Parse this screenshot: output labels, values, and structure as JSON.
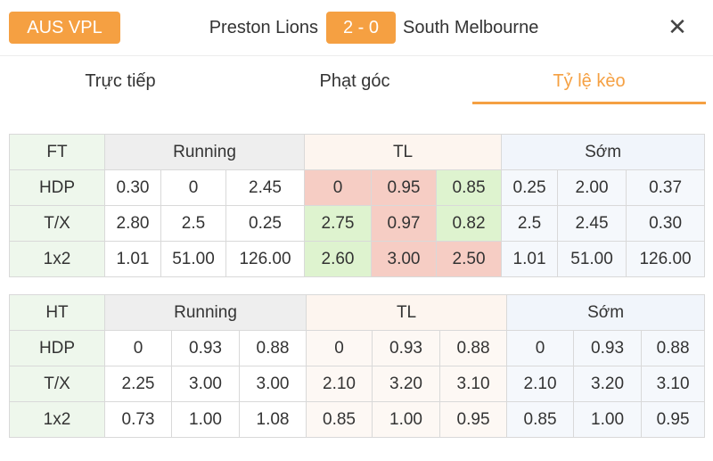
{
  "header": {
    "league": "AUS VPL",
    "home_team": "Preston Lions",
    "score": "2 - 0",
    "away_team": "South Melbourne",
    "close_icon": "close-icon"
  },
  "tabs": [
    {
      "label": "Trực tiếp",
      "active": false
    },
    {
      "label": "Phạt góc",
      "active": false
    },
    {
      "label": "Tỷ lệ kèo",
      "active": true
    }
  ],
  "colors": {
    "accent": "#f5a042",
    "highlight_red": "#f6cdc4",
    "highlight_green": "#def3cf"
  },
  "tables": [
    {
      "period": "FT",
      "groups": [
        "Running",
        "TL",
        "Sớm"
      ],
      "rows": [
        {
          "label": "HDP",
          "running": [
            "0.30",
            "0",
            "2.45"
          ],
          "tl": [
            "0",
            "0.95",
            "0.85"
          ],
          "som": [
            "0.25",
            "2.00",
            "0.37"
          ]
        },
        {
          "label": "T/X",
          "running": [
            "2.80",
            "2.5",
            "0.25"
          ],
          "tl": [
            "2.75",
            "0.97",
            "0.82"
          ],
          "som": [
            "2.5",
            "2.45",
            "0.30"
          ]
        },
        {
          "label": "1x2",
          "running": [
            "1.01",
            "51.00",
            "126.00"
          ],
          "tl": [
            "2.60",
            "3.00",
            "2.50"
          ],
          "som": [
            "1.01",
            "51.00",
            "126.00"
          ]
        }
      ]
    },
    {
      "period": "HT",
      "groups": [
        "Running",
        "TL",
        "Sớm"
      ],
      "rows": [
        {
          "label": "HDP",
          "running": [
            "0",
            "0.93",
            "0.88"
          ],
          "tl": [
            "0",
            "0.93",
            "0.88"
          ],
          "som": [
            "0",
            "0.93",
            "0.88"
          ]
        },
        {
          "label": "T/X",
          "running": [
            "2.25",
            "3.00",
            "3.00"
          ],
          "tl": [
            "2.10",
            "3.20",
            "3.10"
          ],
          "som": [
            "2.10",
            "3.20",
            "3.10"
          ]
        },
        {
          "label": "1x2",
          "running": [
            "0.73",
            "1.00",
            "1.08"
          ],
          "tl": [
            "0.85",
            "1.00",
            "0.95"
          ],
          "som": [
            "0.85",
            "1.00",
            "0.95"
          ]
        }
      ]
    }
  ]
}
